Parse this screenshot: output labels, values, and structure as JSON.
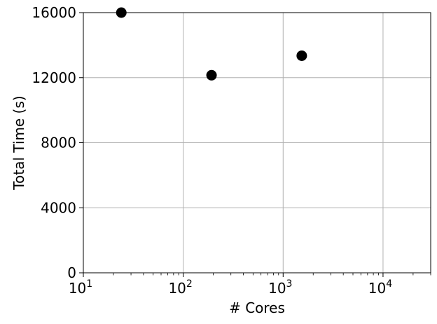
{
  "chart_data": {
    "type": "scatter",
    "title": "",
    "xlabel": "# Cores",
    "ylabel": "Total Time (s)",
    "xscale": "log",
    "xlim": [
      10,
      30000
    ],
    "ylim": [
      0,
      16000
    ],
    "grid": true,
    "x_ticks": [
      {
        "value": 10,
        "base": "10",
        "exp": "1"
      },
      {
        "value": 100,
        "base": "10",
        "exp": "2"
      },
      {
        "value": 1000,
        "base": "10",
        "exp": "3"
      },
      {
        "value": 10000,
        "base": "10",
        "exp": "4"
      }
    ],
    "y_ticks": [
      {
        "value": 0,
        "label": "0"
      },
      {
        "value": 4000,
        "label": "4000"
      },
      {
        "value": 8000,
        "label": "8000"
      },
      {
        "value": 12000,
        "label": "12000"
      },
      {
        "value": 16000,
        "label": "16000"
      }
    ],
    "series": [
      {
        "name": "Total Time",
        "color": "#000000",
        "points": [
          {
            "x": 24,
            "y": 16000
          },
          {
            "x": 192,
            "y": 12150
          },
          {
            "x": 1536,
            "y": 13350
          }
        ]
      }
    ]
  }
}
